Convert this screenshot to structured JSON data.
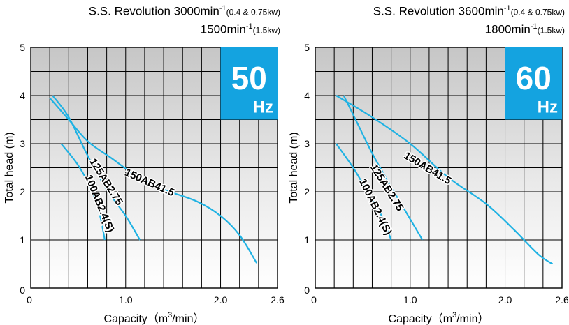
{
  "chart_data": [
    {
      "type": "line",
      "title_line1": {
        "prefix": "S.S. Revolution 3000min",
        "sup": "-1",
        "note": "(0.4 & 0.75kw)"
      },
      "title_line2": {
        "prefix": "1500min",
        "sup": "-1",
        "note": "(1.5kw)"
      },
      "xlabel": "Capacity（m",
      "xlabel_sup": "3",
      "xlabel_tail": "/min）",
      "ylabel": "Total head (m)",
      "xlim": [
        0,
        2.6
      ],
      "ylim": [
        0,
        5
      ],
      "x_ticks": [
        {
          "v": 0,
          "label": "0"
        },
        {
          "v": 1.0,
          "label": "1.0"
        },
        {
          "v": 2.0,
          "label": "2.0"
        },
        {
          "v": 2.6,
          "label": "2.6"
        }
      ],
      "y_ticks": [
        {
          "v": 0,
          "label": "0"
        },
        {
          "v": 1,
          "label": "1"
        },
        {
          "v": 2,
          "label": "2"
        },
        {
          "v": 3,
          "label": "3"
        },
        {
          "v": 4,
          "label": "4"
        },
        {
          "v": 5,
          "label": "5"
        }
      ],
      "grid": true,
      "badge": {
        "number": "50",
        "unit": "Hz",
        "color": "#14a3e0"
      },
      "line_color": "#1fb2e3",
      "series": [
        {
          "name": "100AB2.4(S)",
          "points": [
            [
              0.32,
              3.0
            ],
            [
              0.5,
              2.55
            ],
            [
              0.65,
              2.0
            ],
            [
              0.73,
              1.5
            ],
            [
              0.78,
              1.0
            ]
          ],
          "label_at": [
            0.72,
            1.75
          ],
          "label_angle": 68
        },
        {
          "name": "125AB2.75",
          "points": [
            [
              0.23,
              4.0
            ],
            [
              0.4,
              3.55
            ],
            [
              0.6,
              2.75
            ],
            [
              0.8,
              2.05
            ],
            [
              1.0,
              1.5
            ],
            [
              1.15,
              1.0
            ]
          ],
          "label_at": [
            0.79,
            2.2
          ],
          "label_angle": 58
        },
        {
          "name": "150AB41.5",
          "points": [
            [
              0.2,
              3.95
            ],
            [
              0.4,
              3.5
            ],
            [
              0.6,
              3.05
            ],
            [
              0.85,
              2.7
            ],
            [
              1.1,
              2.35
            ],
            [
              1.4,
              2.05
            ],
            [
              1.75,
              1.8
            ],
            [
              2.0,
              1.5
            ],
            [
              2.2,
              1.1
            ],
            [
              2.38,
              0.52
            ]
          ],
          "label_at": [
            1.25,
            2.18
          ],
          "label_angle": 24
        }
      ]
    },
    {
      "type": "line",
      "title_line1": {
        "prefix": "S.S. Revolution 3600min",
        "sup": "-1",
        "note": "(0.4 & 0.75kw)"
      },
      "title_line2": {
        "prefix": "1800min",
        "sup": "-1",
        "note": "(1.5kw)"
      },
      "xlabel": "Capacity（m",
      "xlabel_sup": "3",
      "xlabel_tail": "/min）",
      "ylabel": "Total head (m)",
      "xlim": [
        0,
        2.6
      ],
      "ylim": [
        0,
        5
      ],
      "x_ticks": [
        {
          "v": 0,
          "label": "0"
        },
        {
          "v": 1.0,
          "label": "1.0"
        },
        {
          "v": 2.0,
          "label": "2.0"
        },
        {
          "v": 2.6,
          "label": "2.6"
        }
      ],
      "y_ticks": [
        {
          "v": 0,
          "label": "0"
        },
        {
          "v": 1,
          "label": "1"
        },
        {
          "v": 2,
          "label": "2"
        },
        {
          "v": 3,
          "label": "3"
        },
        {
          "v": 4,
          "label": "4"
        },
        {
          "v": 5,
          "label": "5"
        }
      ],
      "grid": true,
      "badge": {
        "number": "60",
        "unit": "Hz",
        "color": "#14a3e0"
      },
      "line_color": "#1fb2e3",
      "series": [
        {
          "name": "100AB2.4(S)",
          "points": [
            [
              0.22,
              3.0
            ],
            [
              0.4,
              2.5
            ],
            [
              0.55,
              2.0
            ],
            [
              0.7,
              1.5
            ],
            [
              0.8,
              1.0
            ]
          ],
          "label_at": [
            0.63,
            1.68
          ],
          "label_angle": 64
        },
        {
          "name": "125AB2.75",
          "points": [
            [
              0.3,
              4.0
            ],
            [
              0.45,
              3.4
            ],
            [
              0.6,
              2.8
            ],
            [
              0.8,
              2.1
            ],
            [
              0.98,
              1.5
            ],
            [
              1.13,
              1.0
            ]
          ],
          "label_at": [
            0.75,
            2.08
          ],
          "label_angle": 58
        },
        {
          "name": "150AB41.5",
          "points": [
            [
              0.22,
              4.0
            ],
            [
              0.6,
              3.55
            ],
            [
              1.0,
              3.0
            ],
            [
              1.4,
              2.3
            ],
            [
              1.8,
              1.75
            ],
            [
              2.1,
              1.2
            ],
            [
              2.35,
              0.7
            ],
            [
              2.5,
              0.5
            ]
          ],
          "label_at": [
            1.18,
            2.48
          ],
          "label_angle": 31
        }
      ]
    }
  ]
}
